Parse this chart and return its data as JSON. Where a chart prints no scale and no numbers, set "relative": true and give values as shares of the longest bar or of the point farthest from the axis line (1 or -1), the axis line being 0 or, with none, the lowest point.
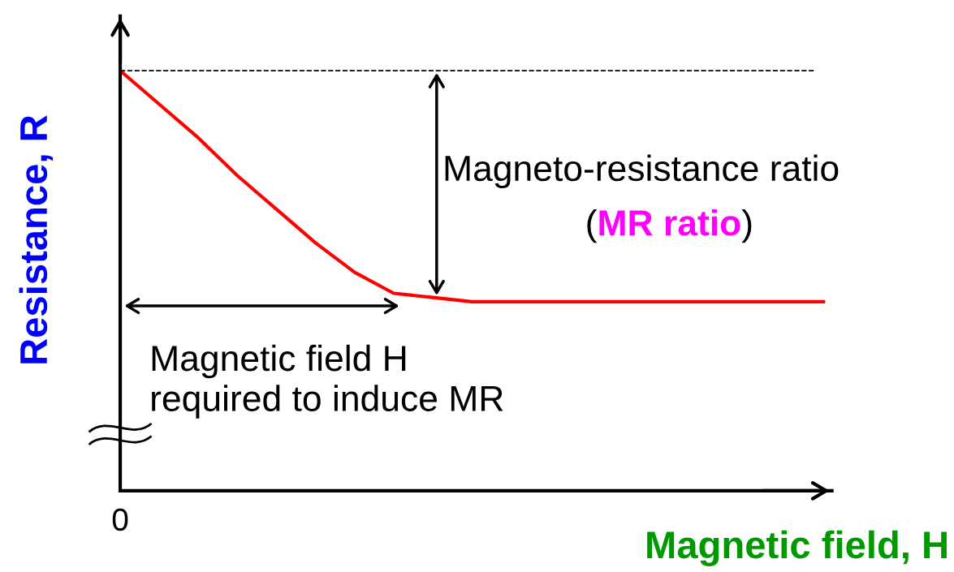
{
  "chart_data": {
    "type": "line",
    "relative": true,
    "xlabel": "Magnetic field, H",
    "ylabel": "Resistance, R",
    "categories": [
      null,
      null,
      null,
      null,
      null,
      null,
      null,
      null,
      null,
      null,
      null,
      null,
      null,
      null,
      null,
      null,
      null,
      null,
      null
    ],
    "series": [
      {
        "color": "#ff0000",
        "values": [
          1,
          0.92,
          0.84,
          0.75,
          0.67,
          0.59,
          0.52,
          0.47,
          0.46,
          0.45,
          0.45,
          0.45,
          0.45,
          0.45,
          0.45,
          0.45,
          0.45,
          0.45,
          0.45
        ]
      }
    ],
    "ref_lines": [
      {
        "axis": "y",
        "value": 1,
        "line_style": "dashed",
        "color": "#000000"
      }
    ],
    "annotations": [
      "0",
      "Magneto-resistance ratio",
      "(MR ratio)",
      "Magnetic field H\nrequired to induce MR"
    ],
    "legend": false,
    "marker": "none",
    "line_style": "solid"
  }
}
